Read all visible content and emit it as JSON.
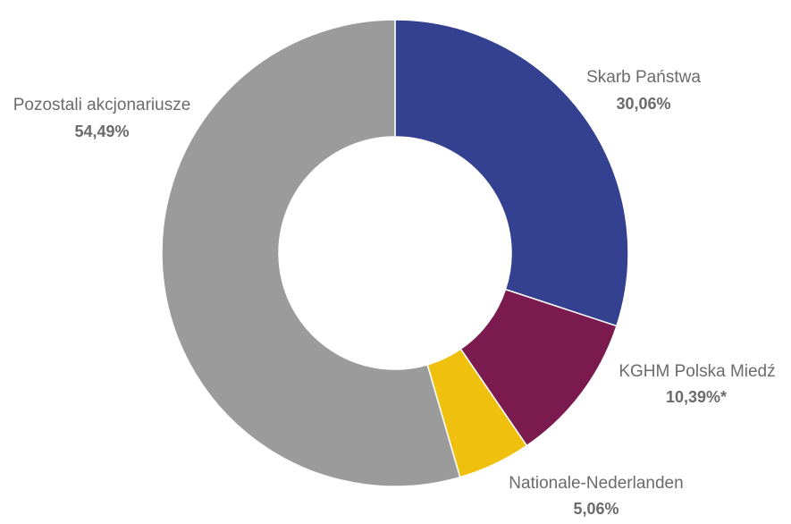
{
  "chart_data": {
    "type": "pie",
    "variant": "donut",
    "start": "top",
    "direction": "clockwise",
    "title": "",
    "legend": "none",
    "series": [
      {
        "values": [
          30.06,
          10.39,
          5.06,
          54.49
        ]
      }
    ],
    "categories": [
      "Skarb Państwa",
      "KGHM Polska Miedź",
      "Nationale-Nederlanden",
      "Pozostali akcjonariusze"
    ],
    "value_labels": [
      "30,06%",
      "10,39%*",
      "5,06%",
      "54,49%"
    ],
    "colors": [
      "#344190",
      "#7a1a4e",
      "#efc10e",
      "#9b9b9b"
    ]
  }
}
